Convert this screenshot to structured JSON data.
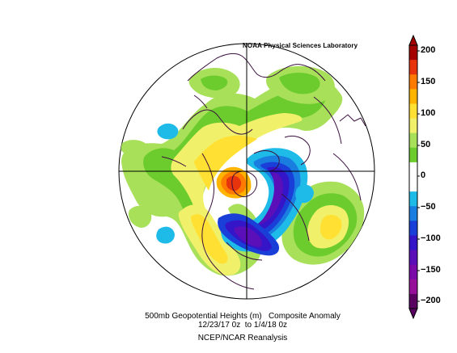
{
  "credit": "NOAA Physical Sciences Laboratory",
  "caption": {
    "line1": "500mb Geopotential Heights (m)   Composite Anomaly",
    "line2": "12/23/17 0z  to 1/4/18 0z",
    "line3": "NCEP/NCAR Reanalysis"
  },
  "colorbar": {
    "ticks": [
      "200",
      "150",
      "100",
      "50",
      "0",
      "−50",
      "−100",
      "−150",
      "−200"
    ],
    "colors": [
      "#a50000",
      "#e8340c",
      "#ff7a00",
      "#ffb400",
      "#ffe033",
      "#f0f06a",
      "#a8e05a",
      "#6ccc2e",
      "#ffffff",
      "#ffffff",
      "#1fbbe8",
      "#1a7ee0",
      "#1a3fd8",
      "#3515c8",
      "#5a0fb8",
      "#7a0aa8",
      "#96109a",
      "#5a0060"
    ]
  },
  "palette": {
    "land_outline": "#3b0f3f",
    "grid": "#000000"
  }
}
